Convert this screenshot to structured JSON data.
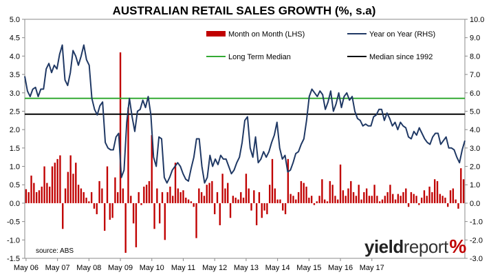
{
  "chart_data": {
    "type": "bar",
    "title": "AUSTRALIAN RETAIL SALES GROWTH (%, s.a)",
    "source": "source: ABS",
    "brand": {
      "left": "yield",
      "right": "report",
      "pct": "%"
    },
    "x_tick_labels": [
      "May 06",
      "May 07",
      "May 08",
      "May 09",
      "May 10",
      "May 11",
      "May 12",
      "May 13",
      "May 14",
      "May 15",
      "May 16",
      "May 17"
    ],
    "left_axis": {
      "ylim": [
        -1.5,
        5.0
      ],
      "ticks": [
        "-1.5",
        "-1.0",
        "-0.5",
        "0.0",
        "0.5",
        "1.0",
        "1.5",
        "2.0",
        "2.5",
        "3.0",
        "3.5",
        "4.0",
        "4.5",
        "5.0"
      ]
    },
    "right_axis": {
      "ylim": [
        -3.0,
        10.0
      ],
      "ticks": [
        "-3.0",
        "-2.0",
        "-1.0",
        "0.0",
        "1.0",
        "2.0",
        "3.0",
        "4.0",
        "5.0",
        "6.0",
        "7.0",
        "8.0",
        "9.0",
        "10.0"
      ]
    },
    "legend": {
      "mom": "Month on Month (LHS)",
      "yoy": "Year on Year (RHS)",
      "ltm": "Long Term Median",
      "m92": "Median since 1992"
    },
    "colors": {
      "bar": "#c00000",
      "yoy": "#1f3864",
      "ltm": "#33aa33",
      "m92": "#000000"
    },
    "reference_lines": {
      "long_term_median_lhs": 2.85,
      "median_since_1992_lhs": 2.42
    },
    "series": [
      {
        "name": "Month on Month (LHS)",
        "axis": "left",
        "values": [
          0.38,
          0.3,
          0.75,
          0.55,
          0.3,
          0.35,
          0.45,
          1.0,
          0.55,
          0.45,
          1.0,
          1.1,
          1.2,
          1.3,
          -0.7,
          0.4,
          0.85,
          1.3,
          0.8,
          1.1,
          0.5,
          0.4,
          0.3,
          0.15,
          0.05,
          0.3,
          -0.15,
          -0.3,
          0.6,
          0.4,
          -0.75,
          1.0,
          -0.45,
          -0.4,
          0.7,
          0.3,
          4.1,
          0.4,
          -1.35,
          2.6,
          0.2,
          -0.55,
          -1.2,
          0.3,
          -0.05,
          0.45,
          0.5,
          0.6,
          1.85,
          -0.7,
          0.4,
          -0.55,
          0.3,
          -1.0,
          0.3,
          0.45,
          0.2,
          1.1,
          0.4,
          0.3,
          0.35,
          0.15,
          0.1,
          0.05,
          -0.1,
          -0.95,
          0.4,
          0.3,
          0.2,
          0.5,
          0.55,
          0.6,
          -0.3,
          0.3,
          -0.6,
          0.8,
          0.4,
          0.55,
          -0.4,
          0.2,
          0.15,
          0.1,
          0.3,
          0.15,
          0.8,
          0.4,
          -0.2,
          0.35,
          -0.6,
          0.3,
          -0.4,
          -0.2,
          -0.3,
          0.5,
          1.2,
          0.4,
          0.1,
          0.1,
          -0.2,
          -0.3,
          1.2,
          0.25,
          0.2,
          0.1,
          0.3,
          0.6,
          0.55,
          0.45,
          0.15,
          0.2,
          -0.05,
          0.05,
          0.2,
          0.65,
          0.1,
          0.05,
          0.6,
          0.5,
          0.2,
          0.1,
          1.05,
          0.35,
          0.2,
          0.4,
          0.6,
          0.3,
          0.2,
          0.5,
          0.1,
          0.3,
          0.4,
          0.2,
          0.2,
          0.5,
          0.2,
          0.05,
          0.1,
          0.2,
          0.3,
          0.5,
          0.25,
          0.1,
          0.25,
          0.2,
          0.3,
          0.4,
          -0.1,
          0.3,
          0.25,
          0.2,
          -0.05,
          0.15,
          0.35,
          0.2,
          0.45,
          0.3,
          0.65,
          0.6,
          0.25,
          0.2,
          0.15,
          -0.1,
          0.35,
          0.4,
          0.1,
          -0.15,
          0.95,
          0.65
        ]
      },
      {
        "name": "Year on Year (RHS)",
        "axis": "right",
        "values": [
          6.9,
          6.1,
          5.8,
          6.2,
          6.3,
          5.8,
          6.2,
          6.2,
          7.3,
          7.6,
          7.1,
          7.5,
          7.3,
          8.1,
          8.6,
          6.7,
          6.4,
          7.1,
          8.3,
          8.0,
          7.5,
          8.0,
          8.6,
          7.8,
          7.5,
          5.7,
          5.1,
          4.8,
          5.3,
          5.5,
          3.3,
          3.0,
          2.9,
          2.9,
          3.6,
          3.8,
          1.4,
          1.8,
          4.4,
          5.7,
          4.7,
          3.9,
          5.0,
          5.1,
          5.6,
          5.2,
          5.8,
          4.8,
          2.5,
          2.0,
          3.6,
          3.5,
          1.4,
          1.1,
          1.4,
          1.8,
          2.0,
          2.2,
          2.0,
          1.6,
          1.3,
          1.2,
          1.9,
          2.5,
          3.5,
          3.5,
          2.0,
          1.1,
          1.4,
          2.6,
          2.0,
          2.4,
          2.1,
          2.6,
          2.4,
          2.4,
          2.0,
          1.6,
          1.8,
          2.2,
          2.5,
          3.3,
          4.5,
          4.7,
          3.0,
          2.5,
          3.6,
          2.2,
          2.4,
          2.8,
          2.5,
          2.8,
          3.3,
          3.7,
          4.4,
          3.0,
          2.4,
          2.6,
          1.7,
          1.8,
          2.2,
          2.7,
          2.8,
          3.2,
          3.5,
          4.5,
          5.8,
          6.2,
          6.0,
          5.8,
          6.1,
          5.9,
          5.1,
          5.5,
          6.1,
          5.0,
          5.4,
          6.0,
          5.2,
          5.8,
          6.0,
          5.6,
          5.8,
          5.0,
          4.6,
          4.5,
          4.2,
          4.3,
          4.2,
          4.2,
          4.7,
          4.8,
          5.1,
          5.1,
          4.5,
          4.9,
          4.6,
          4.2,
          4.4,
          4.0,
          4.4,
          4.2,
          4.1,
          3.6,
          3.5,
          3.9,
          3.7,
          4.1,
          3.8,
          3.5,
          3.3,
          3.2,
          3.6,
          3.8,
          3.8,
          3.2,
          3.4,
          3.6,
          3.0,
          3.0,
          2.9,
          2.5,
          2.2,
          2.9,
          3.4
        ]
      }
    ]
  }
}
